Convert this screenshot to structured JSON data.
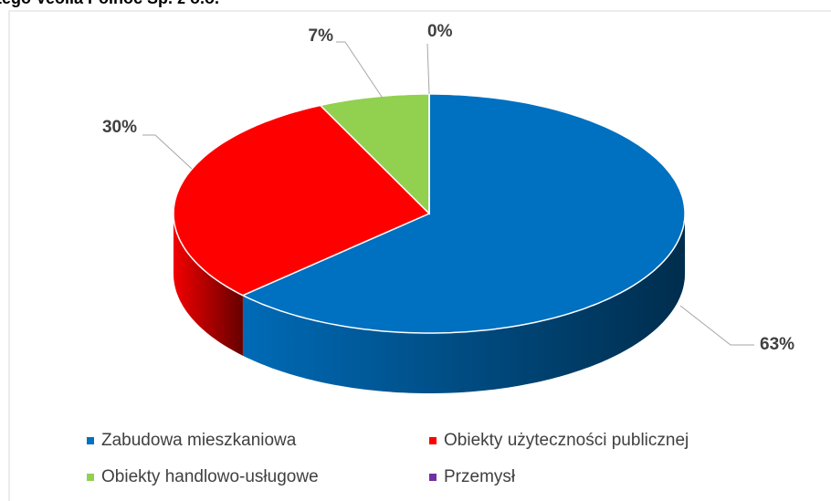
{
  "chart_data": {
    "type": "pie3d",
    "title": "tego Veolia Północ Sp. z o.o.",
    "categories": [
      "Zabudowa mieszkaniowa",
      "Obiekty użyteczności publicznej",
      "Obiekty handlowo-usługowe",
      "Przemysł"
    ],
    "values": [
      63,
      30,
      7,
      0
    ],
    "value_labels": [
      "63%",
      "30%",
      "7%",
      "0%"
    ],
    "colors": [
      "#0070c0",
      "#ff0000",
      "#92d050",
      "#7030a0"
    ],
    "legend": "bottom"
  }
}
